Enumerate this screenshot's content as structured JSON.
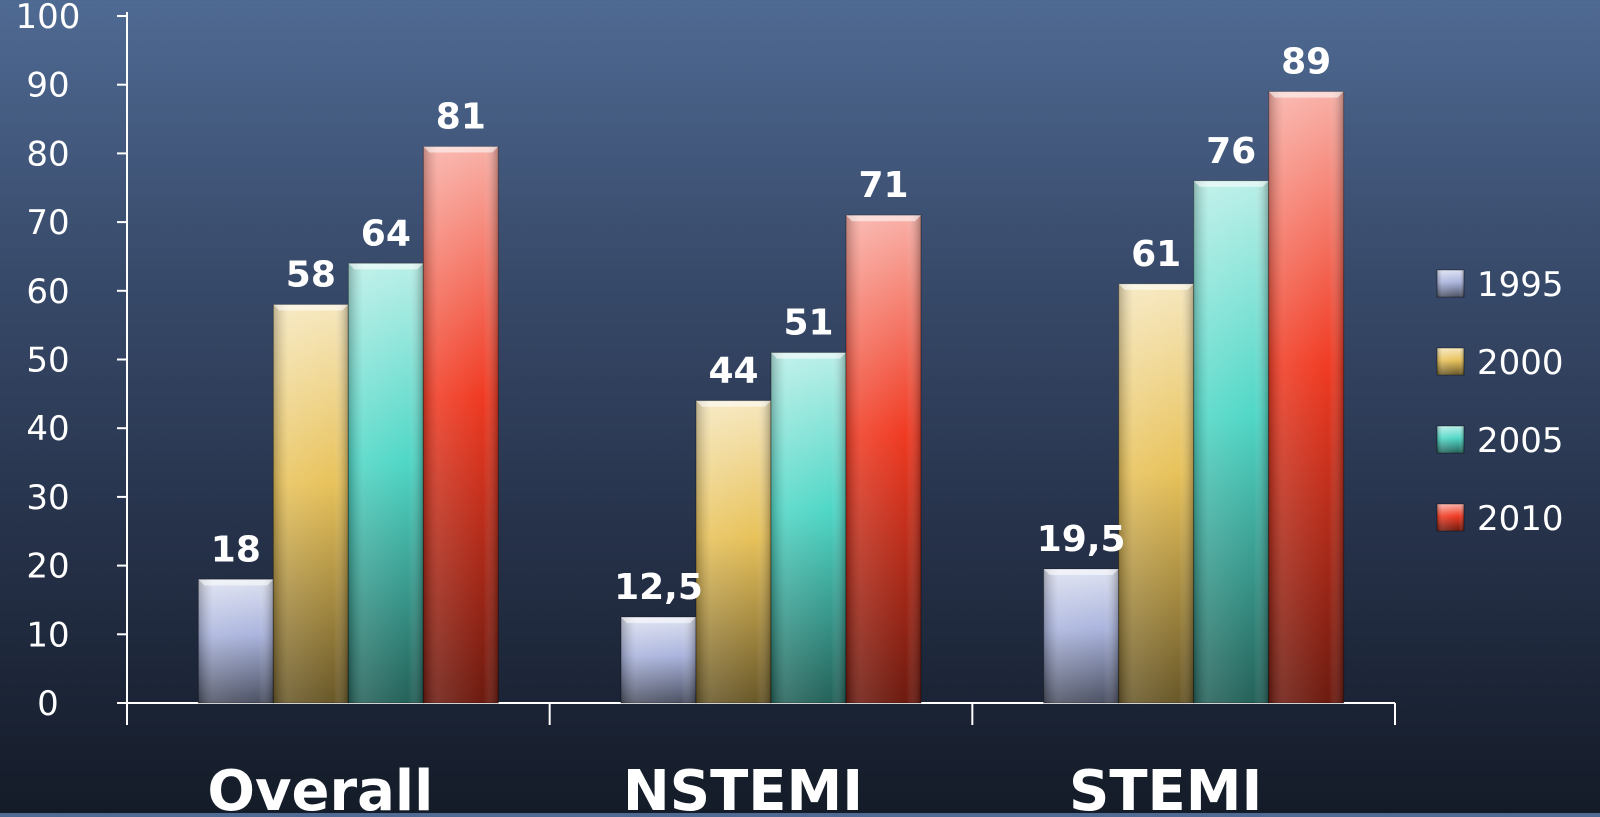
{
  "chart_data": {
    "type": "bar",
    "title": "",
    "xlabel": "",
    "ylabel": "",
    "categories": [
      "Overall",
      "NSTEMI",
      "STEMI"
    ],
    "series": [
      {
        "name": "1995",
        "color": "#aab4dd",
        "values": [
          18,
          12.5,
          19.5
        ],
        "labels": [
          "18",
          "12,5",
          "19,5"
        ]
      },
      {
        "name": "2000",
        "color": "#e8c25a",
        "values": [
          58,
          44,
          61
        ],
        "labels": [
          "58",
          "44",
          "61"
        ]
      },
      {
        "name": "2005",
        "color": "#4fd7c6",
        "values": [
          64,
          51,
          76
        ],
        "labels": [
          "64",
          "51",
          "76"
        ]
      },
      {
        "name": "2010",
        "color": "#f03a22",
        "values": [
          81,
          71,
          89
        ],
        "labels": [
          "81",
          "71",
          "89"
        ]
      }
    ],
    "ylim": [
      0,
      100
    ],
    "yticks": [
      "0",
      "10",
      "20",
      "30",
      "40",
      "50",
      "60",
      "70",
      "80",
      "90",
      "100"
    ],
    "grid": false,
    "legend_position": "right"
  }
}
